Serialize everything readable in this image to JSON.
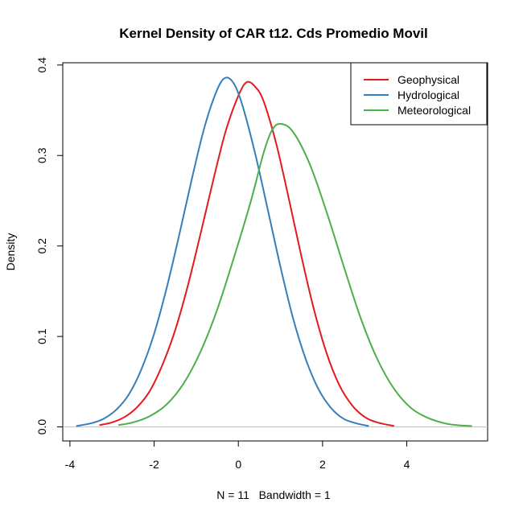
{
  "chart_data": {
    "type": "line",
    "title": "Kernel Density of CAR t12. Cds Promedio Movil",
    "xlabel": "N = 11   Bandwidth = 1",
    "ylabel": "Density",
    "xlim": [
      -4.17,
      5.92
    ],
    "ylim": [
      -0.0155,
      0.4025
    ],
    "x_ticks": [
      -4,
      -2,
      0,
      2,
      4
    ],
    "x_tick_labels": [
      "-4",
      "-2",
      "0",
      "2",
      "4"
    ],
    "y_ticks": [
      0.0,
      0.1,
      0.2,
      0.3,
      0.4
    ],
    "y_tick_labels": [
      "0.0",
      "0.1",
      "0.2",
      "0.3",
      "0.4"
    ],
    "baseline": 0,
    "grid": false,
    "legend_position": "top-right",
    "series": [
      {
        "name": "Geophysical",
        "color": "#E41A1C",
        "x": [
          -3.3,
          -3.0,
          -2.7,
          -2.4,
          -2.1,
          -1.8,
          -1.5,
          -1.2,
          -0.9,
          -0.6,
          -0.3,
          0.0,
          0.2,
          0.4,
          0.6,
          0.9,
          1.2,
          1.5,
          1.8,
          2.1,
          2.4,
          2.7,
          3.0,
          3.3,
          3.7
        ],
        "y": [
          0.002,
          0.005,
          0.011,
          0.022,
          0.04,
          0.069,
          0.107,
          0.156,
          0.213,
          0.272,
          0.327,
          0.366,
          0.381,
          0.376,
          0.36,
          0.313,
          0.252,
          0.188,
          0.129,
          0.081,
          0.046,
          0.024,
          0.011,
          0.005,
          0.001
        ]
      },
      {
        "name": "Hydrological",
        "color": "#377EB8",
        "x": [
          -3.85,
          -3.5,
          -3.2,
          -2.9,
          -2.6,
          -2.3,
          -2.0,
          -1.7,
          -1.4,
          -1.1,
          -0.8,
          -0.5,
          -0.3,
          -0.1,
          0.1,
          0.4,
          0.7,
          1.0,
          1.3,
          1.6,
          1.9,
          2.2,
          2.5,
          2.8,
          3.1
        ],
        "y": [
          0.001,
          0.004,
          0.009,
          0.019,
          0.036,
          0.064,
          0.103,
          0.154,
          0.213,
          0.275,
          0.332,
          0.373,
          0.386,
          0.379,
          0.355,
          0.302,
          0.24,
          0.177,
          0.12,
          0.075,
          0.042,
          0.021,
          0.009,
          0.004,
          0.001
        ]
      },
      {
        "name": "Meteorological",
        "color": "#4DAF4A",
        "x": [
          -2.85,
          -2.5,
          -2.1,
          -1.7,
          -1.3,
          -0.9,
          -0.5,
          -0.1,
          0.3,
          0.6,
          0.8,
          1.0,
          1.3,
          1.7,
          2.1,
          2.5,
          2.9,
          3.3,
          3.7,
          4.1,
          4.5,
          4.9,
          5.2,
          5.55
        ],
        "y": [
          0.002,
          0.005,
          0.012,
          0.025,
          0.048,
          0.083,
          0.13,
          0.188,
          0.25,
          0.303,
          0.328,
          0.335,
          0.326,
          0.29,
          0.237,
          0.178,
          0.121,
          0.075,
          0.042,
          0.021,
          0.01,
          0.004,
          0.002,
          0.001
        ]
      }
    ]
  }
}
